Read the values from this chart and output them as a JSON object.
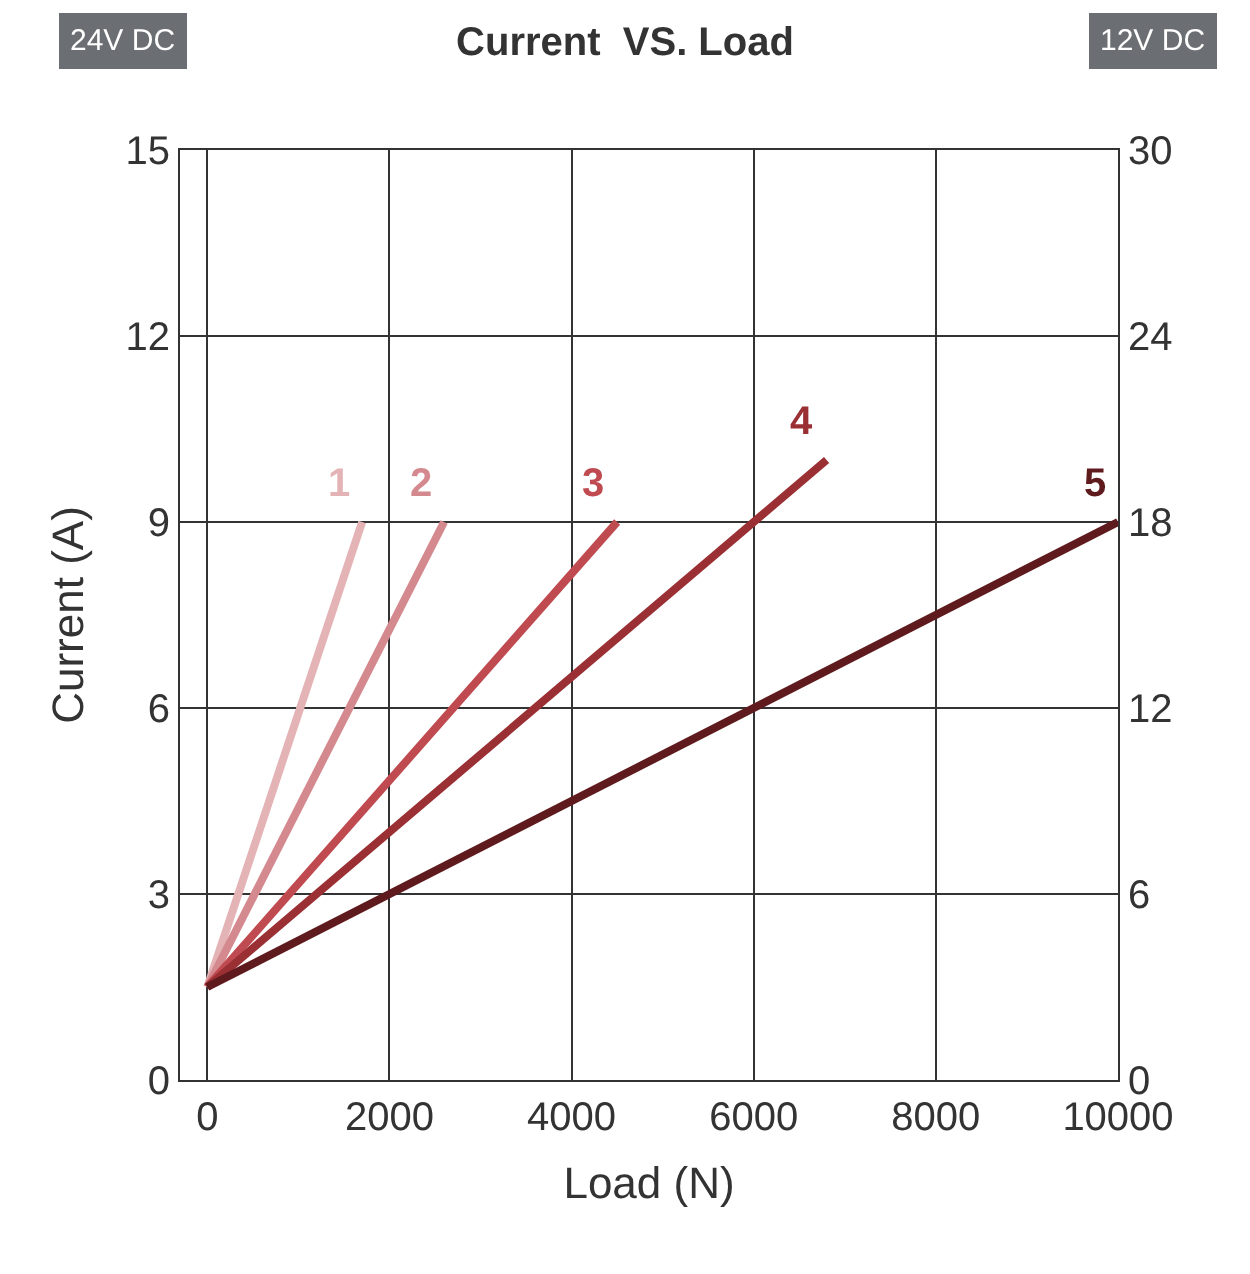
{
  "chart_data": {
    "type": "line",
    "title": "Current  VS. Load",
    "xlabel": "Load (N)",
    "ylabel": "Current (A)",
    "annotations": [
      "24V DC",
      "12V DC"
    ],
    "series": [
      {
        "name": "1",
        "color": "#e4b3b6",
        "x": [
          0,
          1700
        ],
        "values": [
          1.5,
          9
        ]
      },
      {
        "name": "2",
        "color": "#d4898e",
        "x": [
          0,
          2600
        ],
        "values": [
          1.5,
          9
        ]
      },
      {
        "name": "3",
        "color": "#bf4a50",
        "x": [
          0,
          4500
        ],
        "values": [
          1.5,
          9
        ]
      },
      {
        "name": "4",
        "color": "#9a2f34",
        "x": [
          0,
          6800
        ],
        "values": [
          1.5,
          10
        ]
      },
      {
        "name": "5",
        "color": "#5e1a1d",
        "x": [
          0,
          10000
        ],
        "values": [
          1.5,
          9
        ]
      }
    ],
    "xlim": [
      -300,
      10000
    ],
    "xticks": [
      0,
      2000,
      4000,
      6000,
      8000,
      10000
    ],
    "ylim": [
      0,
      15
    ],
    "yticks": [
      0,
      3,
      6,
      9,
      12,
      15
    ],
    "y2lim": [
      0,
      30
    ],
    "y2ticks": [
      0,
      6,
      12,
      18,
      24,
      30
    ],
    "grid": true,
    "legend": false,
    "marker": "none",
    "line_style": "solid"
  }
}
